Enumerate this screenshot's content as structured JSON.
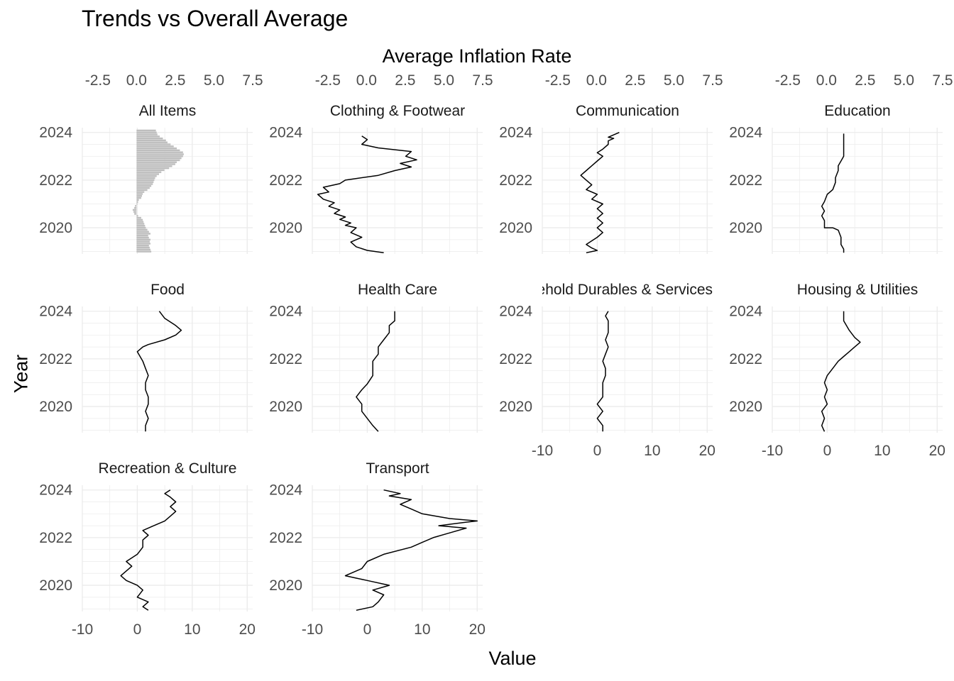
{
  "title": "Trends vs Overall Average",
  "chart_data": {
    "type": "line",
    "title": "Trends vs Overall Average",
    "xlabel": "Value",
    "ylabel": "Year",
    "x2label": "Average Inflation Rate",
    "xlim": [
      -10,
      21
    ],
    "ylim": [
      2018.9,
      2024.2
    ],
    "x2lim": [
      -3.5,
      7.5
    ],
    "x_ticks": [
      "-10",
      "0",
      "10",
      "20"
    ],
    "y_ticks": [
      "2020",
      "2022",
      "2024"
    ],
    "x2_ticks": [
      "-2.5",
      "0.0",
      "2.5",
      "5.0",
      "7.5"
    ],
    "grid": true,
    "facets": [
      {
        "name": "All Items",
        "type": "bar",
        "axis": "secondary",
        "x": [
          0.95,
          0.9,
          0.85,
          0.8,
          0.9,
          0.85,
          0.9,
          0.8,
          0.75,
          0.9,
          0.8,
          0.7,
          0.6,
          0.55,
          0.5,
          0.45,
          0.4,
          0.3,
          0.1,
          -0.15,
          -0.2,
          -0.25,
          -0.15,
          -0.1,
          0.05,
          0.1,
          0.15,
          0.3,
          0.35,
          0.4,
          0.5,
          0.7,
          0.85,
          0.95,
          1.05,
          1.1,
          1.15,
          1.2,
          1.3,
          1.45,
          1.6,
          1.8,
          2.1,
          2.3,
          2.5,
          2.6,
          2.8,
          2.9,
          3.0,
          3.05,
          3.0,
          2.8,
          2.6,
          2.4,
          2.2,
          2.0,
          1.9,
          1.7,
          1.5,
          1.35,
          1.3,
          1.25
        ],
        "y": [
          2019.0,
          2019.083,
          2019.167,
          2019.25,
          2019.333,
          2019.417,
          2019.5,
          2019.583,
          2019.667,
          2019.75,
          2019.833,
          2019.917,
          2020.0,
          2020.083,
          2020.167,
          2020.25,
          2020.333,
          2020.417,
          2020.5,
          2020.583,
          2020.667,
          2020.75,
          2020.833,
          2020.917,
          2021.0,
          2021.083,
          2021.167,
          2021.25,
          2021.333,
          2021.417,
          2021.5,
          2021.583,
          2021.667,
          2021.75,
          2021.833,
          2021.917,
          2022.0,
          2022.083,
          2022.167,
          2022.25,
          2022.333,
          2022.417,
          2022.5,
          2022.583,
          2022.667,
          2022.75,
          2022.833,
          2022.917,
          2023.0,
          2023.083,
          2023.167,
          2023.25,
          2023.333,
          2023.417,
          2023.5,
          2023.583,
          2023.667,
          2023.75,
          2023.833,
          2023.917,
          2024.0,
          2024.083
        ]
      },
      {
        "name": "Clothing & Footwear",
        "type": "line",
        "x": [
          3,
          0,
          -2,
          -3,
          -1,
          -3,
          -2,
          -4,
          -3,
          -5,
          -4,
          -6,
          -5,
          -7,
          -6,
          -8,
          -9,
          -7,
          -8,
          -5,
          -4,
          2,
          5,
          8,
          6,
          9,
          7,
          8,
          2,
          -1,
          0,
          -1
        ],
        "y": [
          2018.95,
          2019.05,
          2019.2,
          2019.4,
          2019.6,
          2019.8,
          2020.0,
          2020.1,
          2020.2,
          2020.35,
          2020.45,
          2020.6,
          2020.75,
          2020.9,
          2021.05,
          2021.2,
          2021.4,
          2021.5,
          2021.7,
          2021.85,
          2022.0,
          2022.2,
          2022.4,
          2022.55,
          2022.7,
          2022.85,
          2023.0,
          2023.2,
          2023.35,
          2023.5,
          2023.7,
          2023.85
        ]
      },
      {
        "name": "Communication",
        "type": "line",
        "x": [
          -2,
          0,
          -1,
          -2,
          -1,
          0,
          1,
          0,
          1,
          0,
          1,
          0,
          1,
          -1,
          0,
          -2,
          -1,
          -2,
          -3,
          -2,
          -1,
          0,
          1,
          0,
          1,
          2,
          2,
          3,
          2,
          3,
          4
        ],
        "y": [
          2018.95,
          2019.05,
          2019.15,
          2019.3,
          2019.45,
          2019.6,
          2019.8,
          2020.0,
          2020.2,
          2020.4,
          2020.6,
          2020.8,
          2021.0,
          2021.2,
          2021.4,
          2021.6,
          2021.8,
          2022.0,
          2022.2,
          2022.4,
          2022.6,
          2022.8,
          2023.0,
          2023.15,
          2023.3,
          2023.5,
          2023.65,
          2023.75,
          2023.8,
          2023.9,
          2024.0
        ]
      },
      {
        "name": "Education",
        "type": "line",
        "x": [
          3,
          3,
          2.5,
          2.5,
          2,
          1,
          -0.5,
          -0.5,
          -1,
          -0.5,
          -1,
          -0.5,
          0,
          1,
          1.5,
          1.5,
          2,
          2,
          2.5,
          3,
          3,
          3,
          3
        ],
        "y": [
          2018.95,
          2019.1,
          2019.3,
          2019.6,
          2019.9,
          2020.0,
          2020.0,
          2020.3,
          2020.5,
          2020.7,
          2020.9,
          2021.1,
          2021.4,
          2021.6,
          2021.9,
          2022.1,
          2022.4,
          2022.6,
          2022.8,
          2023.0,
          2023.3,
          2023.6,
          2023.95
        ]
      },
      {
        "name": "Food",
        "type": "line",
        "x": [
          1.5,
          1.5,
          2,
          1.5,
          2,
          2,
          1.5,
          1.5,
          2,
          1.5,
          1,
          0.5,
          0,
          1,
          2,
          5,
          7,
          8,
          7,
          5,
          4
        ],
        "y": [
          2018.95,
          2019.2,
          2019.5,
          2019.8,
          2020.1,
          2020.4,
          2020.7,
          2021.0,
          2021.3,
          2021.6,
          2021.9,
          2022.1,
          2022.3,
          2022.5,
          2022.6,
          2022.8,
          2023.0,
          2023.2,
          2023.4,
          2023.7,
          2024.0
        ]
      },
      {
        "name": "Health Care",
        "type": "line",
        "x": [
          2,
          1,
          0,
          -1,
          -1,
          -2,
          -1,
          0,
          1,
          1,
          1,
          2,
          2,
          3,
          4,
          4,
          5,
          5,
          5
        ],
        "y": [
          2018.95,
          2019.2,
          2019.5,
          2019.8,
          2020.1,
          2020.4,
          2020.7,
          2020.95,
          2021.3,
          2021.6,
          2021.9,
          2022.2,
          2022.5,
          2022.8,
          2023.1,
          2023.4,
          2023.6,
          2023.8,
          2024.0
        ]
      },
      {
        "name": "Household Durables & Services",
        "type": "line",
        "x": [
          1,
          1,
          0,
          1,
          0,
          1,
          1,
          1,
          1.5,
          1.5,
          1,
          1.5,
          2,
          1.5,
          2,
          2,
          2,
          1.5,
          2
        ],
        "y": [
          2018.95,
          2019.2,
          2019.5,
          2019.8,
          2020.1,
          2020.4,
          2020.7,
          2021.0,
          2021.3,
          2021.6,
          2021.9,
          2022.2,
          2022.5,
          2022.8,
          2023.1,
          2023.4,
          2023.6,
          2023.8,
          2024.0
        ]
      },
      {
        "name": "Housing & Utilities",
        "type": "line",
        "x": [
          -0.5,
          -1,
          -0.5,
          -1,
          0,
          -0.5,
          0,
          -0.5,
          0,
          1,
          2,
          3,
          4,
          5,
          6,
          5,
          4,
          3,
          3
        ],
        "y": [
          2018.95,
          2019.2,
          2019.5,
          2019.8,
          2020.1,
          2020.4,
          2020.7,
          2021.0,
          2021.3,
          2021.6,
          2021.9,
          2022.1,
          2022.3,
          2022.5,
          2022.7,
          2022.9,
          2023.2,
          2023.6,
          2024.0
        ]
      },
      {
        "name": "Recreation & Culture",
        "type": "line",
        "x": [
          2,
          1,
          2,
          0,
          1,
          0,
          -2,
          -3,
          -2,
          -1,
          -2,
          0,
          1,
          1,
          2,
          1,
          3,
          5,
          6,
          7,
          6,
          7,
          6,
          5,
          6
        ],
        "y": [
          2018.95,
          2019.1,
          2019.3,
          2019.5,
          2019.8,
          2020.0,
          2020.2,
          2020.4,
          2020.6,
          2020.8,
          2021.0,
          2021.3,
          2021.6,
          2021.9,
          2022.1,
          2022.3,
          2022.5,
          2022.7,
          2022.9,
          2023.1,
          2023.3,
          2023.5,
          2023.7,
          2023.85,
          2024.0
        ]
      },
      {
        "name": "Transport",
        "type": "line",
        "x": [
          -2,
          1,
          2,
          3,
          1,
          4,
          0,
          -2,
          -4,
          -1,
          0,
          3,
          8,
          10,
          12,
          15,
          18,
          13,
          18,
          20,
          15,
          10,
          8,
          6,
          8,
          4,
          6,
          3
        ],
        "y": [
          2018.95,
          2019.1,
          2019.3,
          2019.6,
          2019.8,
          2020.0,
          2020.2,
          2020.3,
          2020.4,
          2020.7,
          2021.0,
          2021.3,
          2021.6,
          2021.8,
          2022.0,
          2022.2,
          2022.4,
          2022.5,
          2022.65,
          2022.7,
          2022.8,
          2023.0,
          2023.2,
          2023.4,
          2023.6,
          2023.75,
          2023.85,
          2024.0
        ]
      }
    ]
  },
  "facet_titles": [
    "All Items",
    "Clothing & Footwear",
    "Communication",
    "Education",
    "Food",
    "Health Care",
    "Household Durables & Services",
    "Housing & Utilities",
    "Recreation & Culture",
    "Transport"
  ],
  "colors": {
    "line": "#000000",
    "bar": "#bebebe",
    "grid": "#ebebeb",
    "text": "#4d4d4d"
  }
}
